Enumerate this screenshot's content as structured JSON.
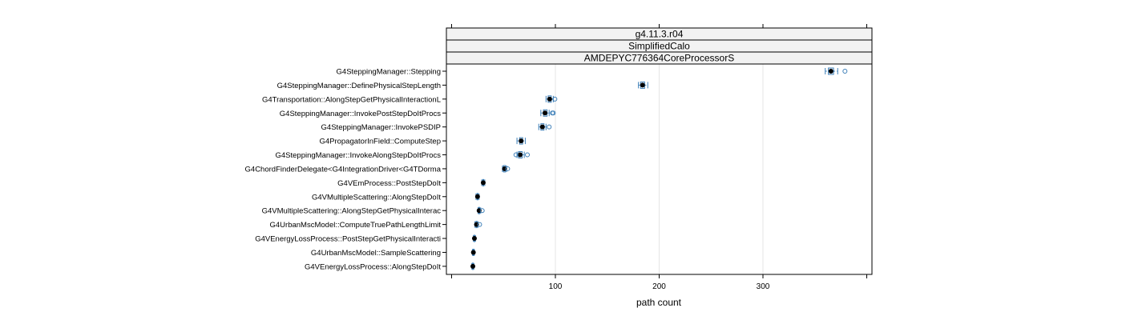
{
  "chart_data": {
    "type": "box",
    "strips": [
      "g4.11.3.r04",
      "SimplifiedCalo",
      "AMDEPYC776364CoreProcessorS"
    ],
    "xlabel": "path count",
    "xlim": [
      -5,
      405
    ],
    "xticks": [
      100,
      200,
      300
    ],
    "grid": true,
    "categories": [
      "G4SteppingManager::Stepping",
      "G4SteppingManager::DefinePhysicalStepLength",
      "G4Transportation::AlongStepGetPhysicalInteractionL",
      "G4SteppingManager::InvokePostStepDoItProcs",
      "G4SteppingManager::InvokePSDIP",
      "G4PropagatorInField::ComputeStep",
      "G4SteppingManager::InvokeAlongStepDoItProcs",
      "G4ChordFinderDelegate<G4IntegrationDriver<G4TDorma",
      "G4VEmProcess::PostStepDoIt",
      "G4VMultipleScattering::AlongStepDoIt",
      "G4VMultipleScattering::AlongStepGetPhysicalInterac",
      "G4UrbanMscModel::ComputeTruePathLengthLimit",
      "G4VEnergyLossProcess::PostStepGetPhysicalInteracti",
      "G4UrbanMscModel::SampleScattering",
      "G4VEnergyLossProcess::AlongStepDoIt"
    ],
    "boxes": [
      {
        "min": 360,
        "q1": 363,
        "median": 365.5,
        "q3": 368,
        "max": 372,
        "outliers": [
          379
        ]
      },
      {
        "min": 180,
        "q1": 182,
        "median": 184,
        "q3": 186,
        "max": 189,
        "outliers": []
      },
      {
        "min": 91,
        "q1": 93,
        "median": 94.5,
        "q3": 96,
        "max": 98,
        "outliers": [
          99.5
        ]
      },
      {
        "min": 86,
        "q1": 88.5,
        "median": 90,
        "q3": 92,
        "max": 94,
        "outliers": [
          97,
          98
        ]
      },
      {
        "min": 84,
        "q1": 86,
        "median": 87.5,
        "q3": 89,
        "max": 91,
        "outliers": [
          94
        ]
      },
      {
        "min": 63,
        "q1": 65.5,
        "median": 67,
        "q3": 68.5,
        "max": 71,
        "outliers": []
      },
      {
        "min": 63,
        "q1": 64.5,
        "median": 66,
        "q3": 68,
        "max": 70,
        "outliers": [
          62,
          73
        ]
      },
      {
        "min": 49,
        "q1": 50,
        "median": 51,
        "q3": 52,
        "max": 53,
        "outliers": [
          54
        ]
      },
      {
        "min": 29,
        "q1": 30,
        "median": 30.5,
        "q3": 31,
        "max": 32,
        "outliers": []
      },
      {
        "min": 23.5,
        "q1": 24.5,
        "median": 25,
        "q3": 25.5,
        "max": 26.5,
        "outliers": []
      },
      {
        "min": 25.5,
        "q1": 26,
        "median": 26.5,
        "q3": 27,
        "max": 28,
        "outliers": [
          29.5
        ]
      },
      {
        "min": 22.5,
        "q1": 23.5,
        "median": 24,
        "q3": 24.5,
        "max": 25.5,
        "outliers": [
          27
        ]
      },
      {
        "min": 21,
        "q1": 21.5,
        "median": 22,
        "q3": 22.5,
        "max": 23,
        "outliers": []
      },
      {
        "min": 20,
        "q1": 20.5,
        "median": 21,
        "q3": 21.5,
        "max": 22,
        "outliers": []
      },
      {
        "min": 19.5,
        "q1": 20,
        "median": 20.5,
        "q3": 21,
        "max": 21.5,
        "outliers": []
      }
    ],
    "colors": {
      "box": "#3d7fb8",
      "median": "#000000",
      "strip_bg": "#f2f2f2",
      "grid": "#e6e6e6",
      "axis": "#000000"
    }
  }
}
